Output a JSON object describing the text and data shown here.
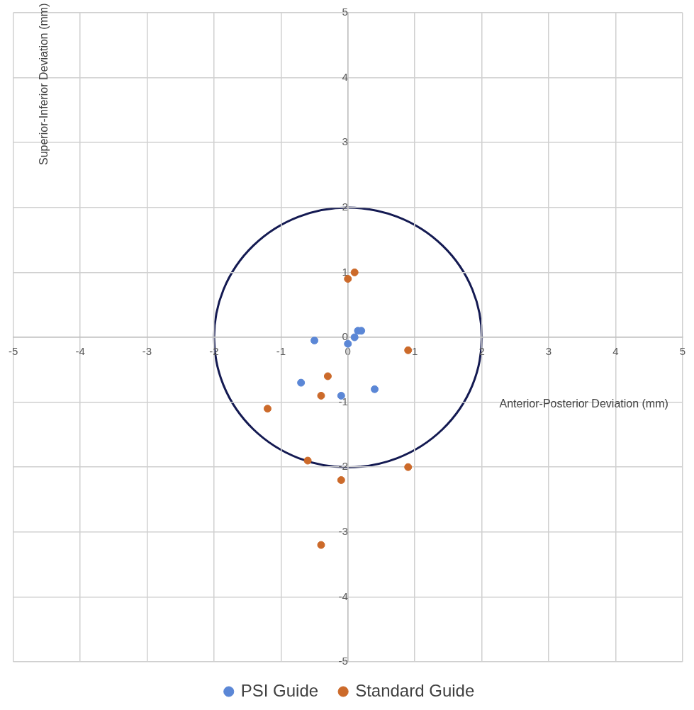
{
  "chart_data": {
    "type": "scatter",
    "xlabel": "Anterior-Posterior Deviation (mm)",
    "ylabel": "Superior-Inferior Deviation (mm)",
    "xlim": [
      -5,
      5
    ],
    "xticks": [
      -5,
      -4,
      -3,
      -2,
      -1,
      0,
      1,
      2,
      3,
      4,
      5
    ],
    "ylim": [
      -5,
      5
    ],
    "yticks": [
      -5,
      -4,
      -3,
      -2,
      -1,
      0,
      1,
      2,
      3,
      4,
      5
    ],
    "grid": true,
    "legend": "bottom",
    "marker": "circle",
    "series": [
      {
        "name": "PSI Guide",
        "color": "#5b87d6",
        "x": [
          -0.5,
          0,
          0.1,
          0.15,
          0.2,
          -0.7,
          -0.1,
          0.4
        ],
        "values": [
          -0.05,
          -0.1,
          0,
          0.1,
          0.1,
          -0.7,
          -0.9,
          -0.8
        ]
      },
      {
        "name": "Standard Guide",
        "color": "#cc6a2a",
        "x": [
          0.1,
          0,
          0.9,
          -0.3,
          -0.4,
          -1.2,
          -0.6,
          -0.1,
          0.9,
          -0.4
        ],
        "values": [
          1.0,
          0.9,
          -0.2,
          -0.6,
          -0.9,
          -1.1,
          -1.9,
          -2.2,
          -2.0,
          -3.2
        ]
      }
    ]
  }
}
